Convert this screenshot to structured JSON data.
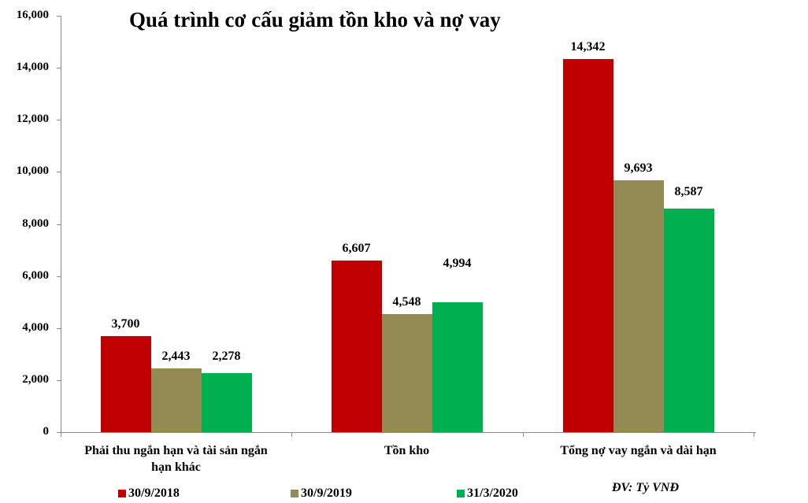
{
  "chart_data": {
    "type": "bar",
    "title": "Quá trình cơ cấu giảm tồn kho và nợ vay",
    "xlabel": "",
    "ylabel": "",
    "unit_note": "ĐV: Tỷ VNĐ",
    "ylim": [
      0,
      16000
    ],
    "yticks": [
      "0",
      "2,000",
      "4,000",
      "6,000",
      "8,000",
      "10,000",
      "12,000",
      "14,000",
      "16,000"
    ],
    "grid": false,
    "legend_position": "bottom",
    "categories": [
      "Phải thu ngắn hạn và tài sản ngắn hạn khác",
      "Tồn kho",
      "Tổng nợ vay ngắn và dài hạn"
    ],
    "series": [
      {
        "name": "30/9/2018",
        "color": "#c00000",
        "values": [
          3700,
          6607,
          14342
        ],
        "labels": [
          "3,700",
          "6,607",
          "14,342"
        ]
      },
      {
        "name": "30/9/2019",
        "color": "#948a54",
        "values": [
          2443,
          4548,
          9693
        ],
        "labels": [
          "2,443",
          "4,548",
          "9,693"
        ]
      },
      {
        "name": "31/3/2020",
        "color": "#00b050",
        "values": [
          2278,
          4994,
          8587
        ],
        "labels": [
          "2,278",
          "4,994",
          "8,587"
        ]
      }
    ]
  },
  "categories_display": [
    [
      "Phải thu ngắn hạn và tài sản ngắn",
      "hạn khác"
    ],
    [
      "Tồn kho"
    ],
    [
      "Tổng nợ vay ngắn và dài hạn"
    ]
  ]
}
